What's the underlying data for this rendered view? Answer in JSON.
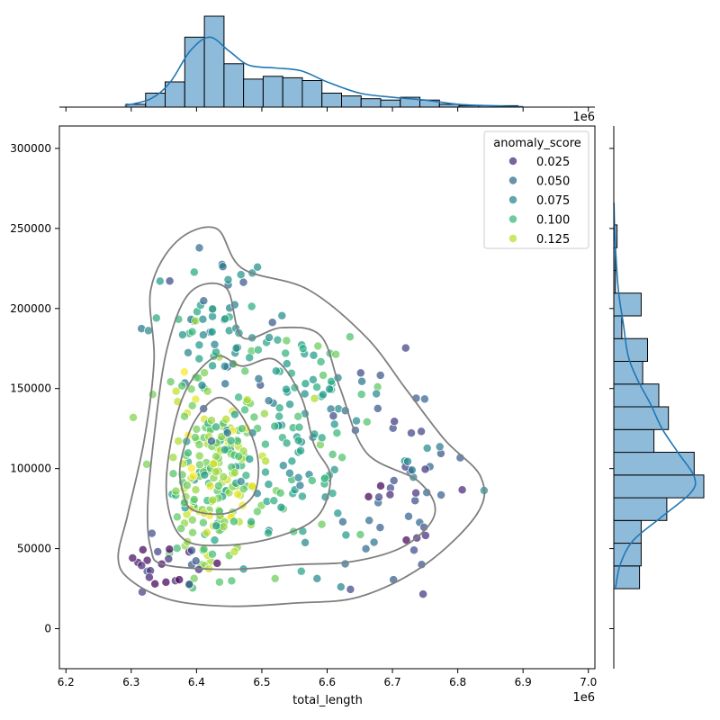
{
  "chart_data": {
    "type": "scatter",
    "title": "",
    "xlabel": "total_length",
    "ylabel": "",
    "x_offset_label": "1e6",
    "xlim": [
      6.19,
      7.01
    ],
    "ylim": [
      -25000,
      314000
    ],
    "x_ticks": [
      6.2,
      6.3,
      6.4,
      6.5,
      6.6,
      6.7,
      6.8,
      6.9,
      7.0
    ],
    "x_tick_labels": [
      "6.2",
      "6.3",
      "6.4",
      "6.5",
      "6.6",
      "6.7",
      "6.8",
      "6.9",
      "7.0"
    ],
    "y_ticks": [
      0,
      50000,
      100000,
      150000,
      200000,
      250000,
      300000
    ],
    "y_tick_labels": [
      "0",
      "50000",
      "100000",
      "150000",
      "200000",
      "250000",
      "300000"
    ],
    "grid": false,
    "legend": {
      "title": "anomaly_score",
      "placement": "top-right",
      "entries": [
        {
          "label": "0.025",
          "color": "#482878"
        },
        {
          "label": "0.050",
          "color": "#31688e"
        },
        {
          "label": "0.075",
          "color": "#26828e"
        },
        {
          "label": "0.100",
          "color": "#35b779"
        },
        {
          "label": "0.125",
          "color": "#b5de2b"
        }
      ]
    },
    "colormap": "viridis",
    "color_range": [
      0.0,
      0.15
    ],
    "scatter_clusters": [
      {
        "center": [
          6.425,
          95000
        ],
        "spread": [
          0.035,
          32000
        ],
        "count": 210,
        "score_mean": 0.118
      },
      {
        "center": [
          6.555,
          120000
        ],
        "spread": [
          0.05,
          40000
        ],
        "count": 130,
        "score_mean": 0.088
      },
      {
        "center": [
          6.42,
          185000
        ],
        "spread": [
          0.045,
          28000
        ],
        "count": 70,
        "score_mean": 0.07
      },
      {
        "center": [
          6.72,
          90000
        ],
        "spread": [
          0.07,
          40000
        ],
        "count": 55,
        "score_mean": 0.04
      },
      {
        "center": [
          6.36,
          40000
        ],
        "spread": [
          0.03,
          9000
        ],
        "count": 28,
        "score_mean": 0.022
      }
    ],
    "kde_contours": [
      [
        [
          6.3,
          30000
        ],
        [
          6.36,
          18000
        ],
        [
          6.45,
          14000
        ],
        [
          6.55,
          16000
        ],
        [
          6.65,
          20000
        ],
        [
          6.75,
          40000
        ],
        [
          6.83,
          72000
        ],
        [
          6.835,
          95000
        ],
        [
          6.78,
          118000
        ],
        [
          6.72,
          150000
        ],
        [
          6.66,
          182000
        ],
        [
          6.57,
          212000
        ],
        [
          6.47,
          225000
        ],
        [
          6.43,
          250000
        ],
        [
          6.37,
          242000
        ],
        [
          6.33,
          212000
        ],
        [
          6.335,
          168000
        ],
        [
          6.32,
          118000
        ],
        [
          6.295,
          72000
        ],
        [
          6.28,
          44000
        ]
      ],
      [
        [
          6.35,
          40000
        ],
        [
          6.45,
          37000
        ],
        [
          6.55,
          40000
        ],
        [
          6.64,
          42000
        ],
        [
          6.72,
          52000
        ],
        [
          6.765,
          72000
        ],
        [
          6.74,
          92000
        ],
        [
          6.66,
          110000
        ],
        [
          6.62,
          150000
        ],
        [
          6.59,
          183000
        ],
        [
          6.53,
          188000
        ],
        [
          6.47,
          182000
        ],
        [
          6.445,
          213000
        ],
        [
          6.39,
          210000
        ],
        [
          6.355,
          175000
        ],
        [
          6.335,
          120000
        ],
        [
          6.325,
          75000
        ],
        [
          6.33,
          50000
        ]
      ],
      [
        [
          6.38,
          56000
        ],
        [
          6.44,
          52000
        ],
        [
          6.52,
          57000
        ],
        [
          6.585,
          70000
        ],
        [
          6.605,
          95000
        ],
        [
          6.58,
          115000
        ],
        [
          6.56,
          145000
        ],
        [
          6.52,
          168000
        ],
        [
          6.47,
          164000
        ],
        [
          6.43,
          170000
        ],
        [
          6.385,
          150000
        ],
        [
          6.36,
          115000
        ],
        [
          6.355,
          80000
        ]
      ],
      [
        [
          6.395,
          74000
        ],
        [
          6.445,
          72000
        ],
        [
          6.485,
          82000
        ],
        [
          6.495,
          100000
        ],
        [
          6.485,
          120000
        ],
        [
          6.46,
          138000
        ],
        [
          6.43,
          144000
        ],
        [
          6.395,
          128000
        ],
        [
          6.375,
          102000
        ],
        [
          6.38,
          84000
        ]
      ]
    ],
    "top_histogram": {
      "bin_edges": [
        6.292,
        6.322,
        6.352,
        6.382,
        6.412,
        6.442,
        6.472,
        6.502,
        6.532,
        6.562,
        6.592,
        6.622,
        6.652,
        6.682,
        6.712,
        6.742,
        6.772,
        6.802,
        6.832,
        6.862,
        6.892
      ],
      "counts": [
        2,
        10,
        18,
        50,
        65,
        31,
        20,
        22,
        21,
        19,
        10,
        8,
        6,
        5,
        7,
        5,
        2,
        1,
        1,
        1
      ],
      "kde": [
        [
          6.29,
          1
        ],
        [
          6.33,
          6
        ],
        [
          6.36,
          18
        ],
        [
          6.39,
          40
        ],
        [
          6.42,
          50
        ],
        [
          6.45,
          40
        ],
        [
          6.48,
          30
        ],
        [
          6.52,
          28
        ],
        [
          6.56,
          26
        ],
        [
          6.6,
          18
        ],
        [
          6.65,
          10
        ],
        [
          6.7,
          7
        ],
        [
          6.75,
          5
        ],
        [
          6.8,
          2
        ],
        [
          6.85,
          1
        ],
        [
          6.9,
          0.3
        ]
      ]
    },
    "right_histogram": {
      "bin_edges": [
        25000,
        39200,
        53400,
        67600,
        81800,
        96000,
        110200,
        124400,
        138600,
        152800,
        167000,
        181200,
        195400,
        209600,
        223800,
        238000,
        252200,
        266400
      ],
      "counts": [
        16,
        17,
        17,
        33,
        56,
        50,
        25,
        34,
        28,
        18,
        21,
        5,
        17,
        1,
        1,
        2,
        0
      ],
      "kde": [
        [
          25000,
          1
        ],
        [
          40000,
          4
        ],
        [
          55000,
          12
        ],
        [
          70000,
          30
        ],
        [
          85000,
          48
        ],
        [
          95000,
          50
        ],
        [
          110000,
          40
        ],
        [
          125000,
          30
        ],
        [
          140000,
          23
        ],
        [
          155000,
          15
        ],
        [
          170000,
          9
        ],
        [
          190000,
          6
        ],
        [
          210000,
          3
        ],
        [
          230000,
          1.5
        ],
        [
          250000,
          0.5
        ],
        [
          266000,
          0.1
        ]
      ]
    }
  }
}
